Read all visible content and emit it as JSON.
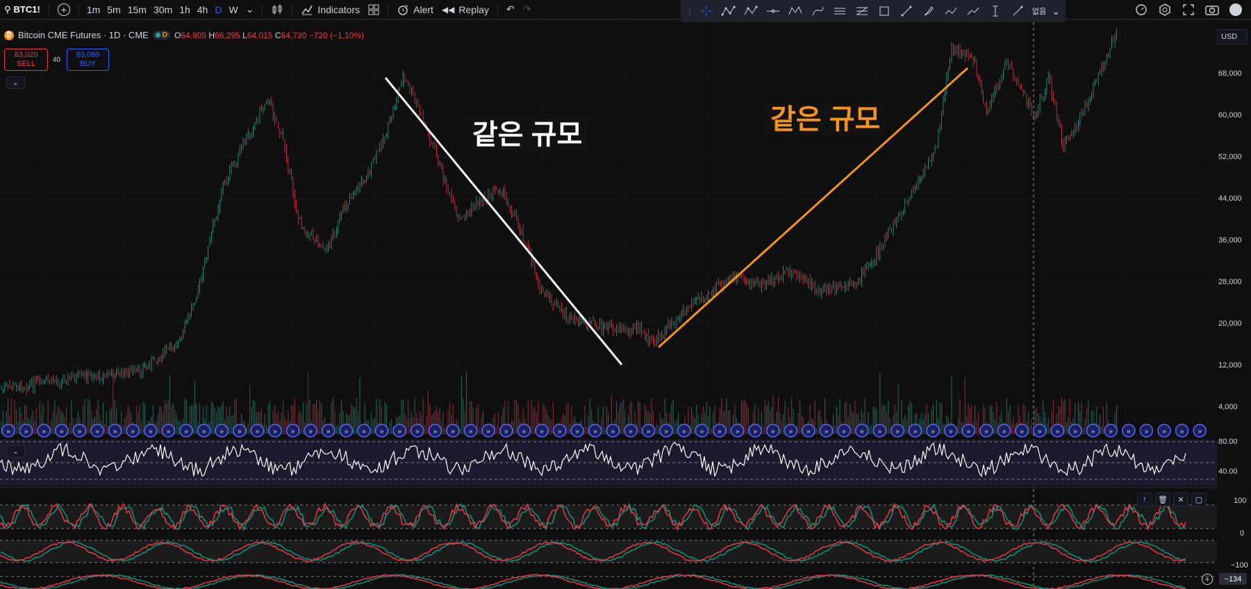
{
  "toolbar": {
    "symbol": "BTC1!",
    "timeframes": [
      "1m",
      "5m",
      "15m",
      "30m",
      "1h",
      "4h",
      "D",
      "W"
    ],
    "active_timeframe": "D",
    "indicators_label": "Indicators",
    "alert_label": "Alert",
    "replay_label": "Replay",
    "lang_label": "없음"
  },
  "legend": {
    "title": "Bitcoin CME Futures · 1D · CME",
    "badge": "D",
    "open_label": "O",
    "open": "64,805",
    "high_label": "H",
    "high": "66,295",
    "low_label": "L",
    "low": "64,015",
    "close_label": "C",
    "close": "64,730",
    "change": "−720 (−1.10%)"
  },
  "trade": {
    "sell_price": "83,020",
    "sell_label": "SELL",
    "buy_price": "83,060",
    "buy_label": "BUY",
    "spread": "40"
  },
  "currency": "USD",
  "price_scale": [
    "68,000",
    "60,000",
    "52,000",
    "44,000",
    "36,000",
    "28,000",
    "20,000",
    "12,000",
    "4,000"
  ],
  "rsi_scale": [
    "80.00",
    "40.00"
  ],
  "osc_scale": [
    "100",
    "0",
    "−100"
  ],
  "annotations": {
    "white": "같은 규모",
    "orange": "같은 규모"
  },
  "bottom_value": "−134",
  "colors": {
    "bull": "#22ab94",
    "bear": "#f23645",
    "accent": "#2962ff",
    "orange_line": "#f7931a",
    "rsi_band": "#2a2440"
  }
}
